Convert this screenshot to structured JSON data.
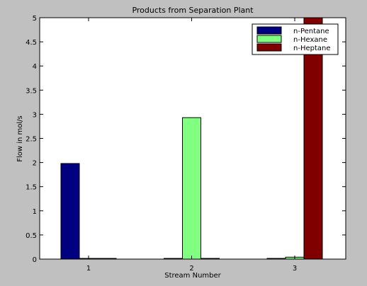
{
  "chart_data": {
    "type": "bar",
    "title": "Products from Separation Plant",
    "xlabel": "Stream Number",
    "ylabel": "Flow in mol/s",
    "categories": [
      "1",
      "2",
      "3"
    ],
    "ylim": [
      0,
      5
    ],
    "yticks": [
      "0",
      "0.5",
      "1",
      "1.5",
      "2",
      "2.5",
      "3",
      "3.5",
      "4",
      "4.5",
      "5"
    ],
    "legend_position": "top-right",
    "grid": false,
    "series": [
      {
        "name": "n-Pentane",
        "color": "#000080",
        "values": [
          1.98,
          0.01,
          0
        ]
      },
      {
        "name": "n-Hexane",
        "color": "#80ff80",
        "values": [
          0.01,
          2.93,
          0.04
        ]
      },
      {
        "name": "n-Heptane",
        "color": "#800000",
        "values": [
          0,
          0.01,
          5.0
        ]
      }
    ]
  }
}
